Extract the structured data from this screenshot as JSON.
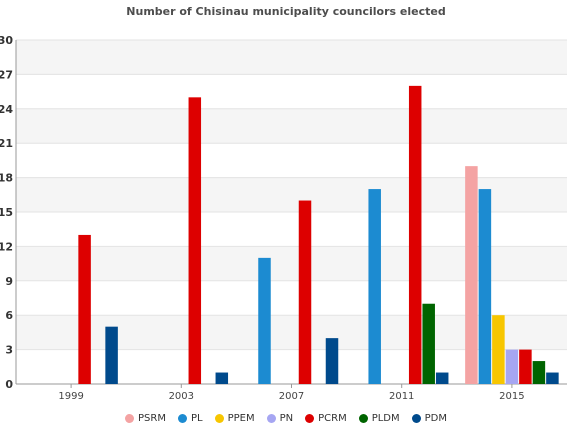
{
  "chart_data": {
    "type": "bar",
    "title": "Number of Chisinau municipality councilors elected",
    "categories": [
      "1999",
      "2003",
      "2007",
      "2011",
      "2015"
    ],
    "ylim": [
      0,
      30
    ],
    "yticks": [
      "0",
      "3",
      "6",
      "9",
      "12",
      "15",
      "18",
      "21",
      "24",
      "27",
      "30"
    ],
    "grid": true,
    "legend_position": "bottom",
    "series": [
      {
        "name": "PSRM",
        "color": "#f4a3a3",
        "values": [
          0,
          0,
          0,
          0,
          19
        ]
      },
      {
        "name": "PL",
        "color": "#1c8bd1",
        "values": [
          0,
          0,
          11,
          17,
          17
        ]
      },
      {
        "name": "PPEM",
        "color": "#f7c600",
        "values": [
          0,
          0,
          0,
          0,
          6
        ]
      },
      {
        "name": "PN",
        "color": "#a6a6f2",
        "values": [
          0,
          0,
          0,
          0,
          3
        ]
      },
      {
        "name": "PCRM",
        "color": "#dd0000",
        "values": [
          13,
          25,
          16,
          26,
          3
        ]
      },
      {
        "name": "PLDM",
        "color": "#006400",
        "values": [
          0,
          0,
          0,
          7,
          2
        ]
      },
      {
        "name": "PDM",
        "color": "#004a8c",
        "values": [
          5,
          1,
          4,
          1,
          1
        ]
      }
    ]
  }
}
